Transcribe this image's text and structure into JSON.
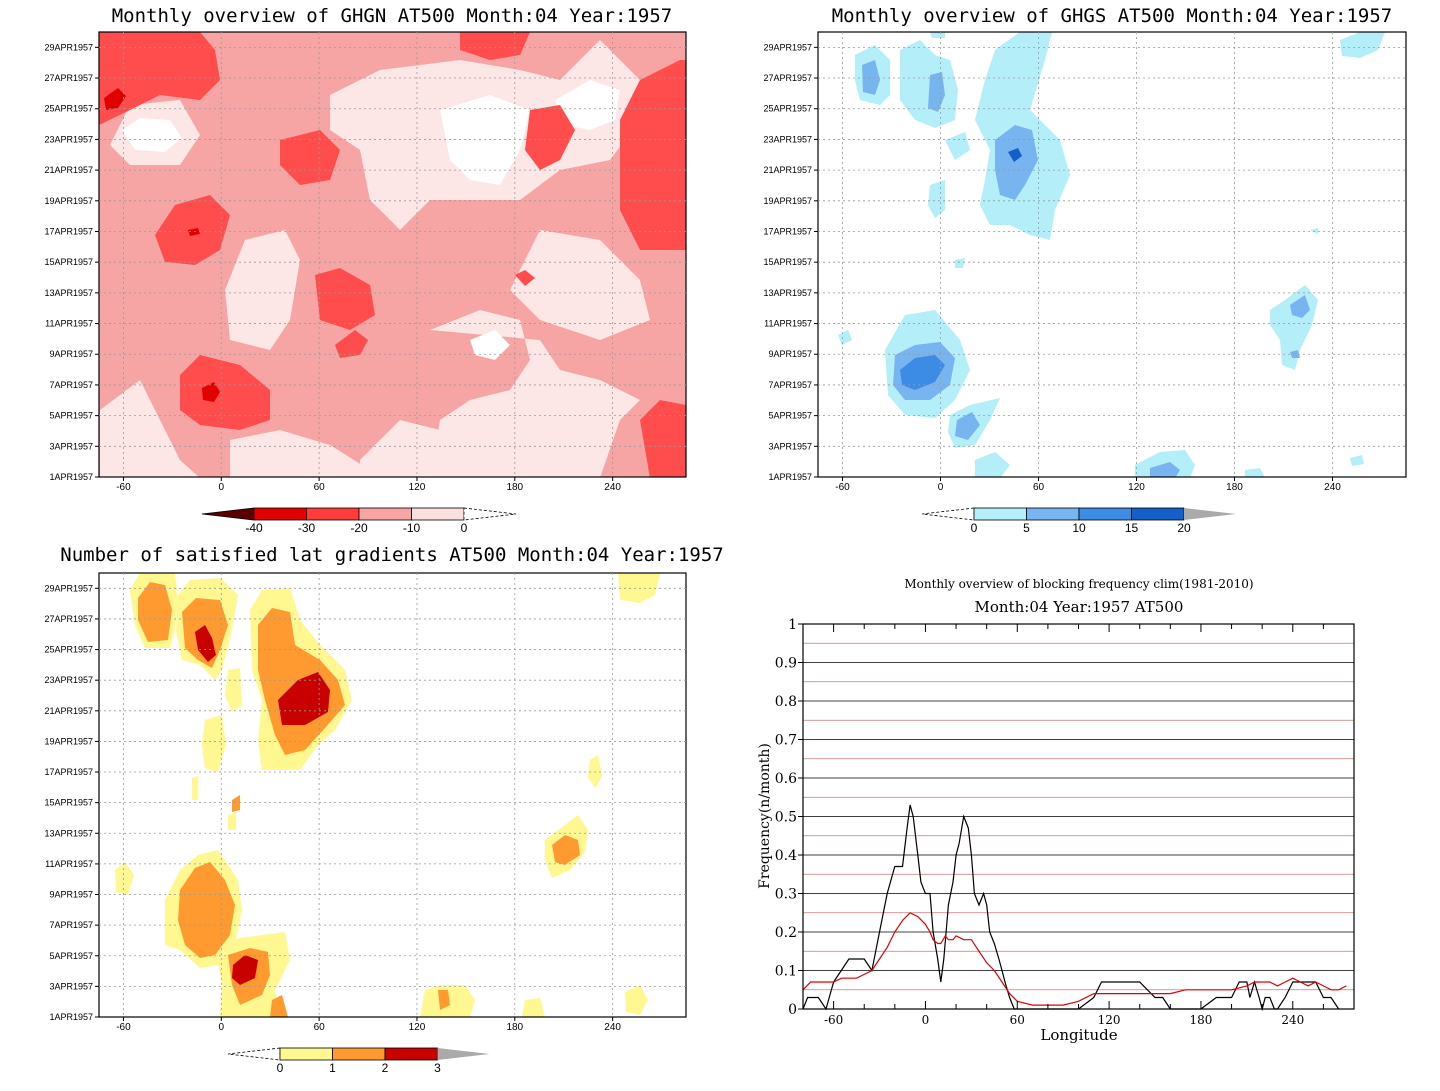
{
  "panels": [
    {
      "id": "ghgn",
      "title": "Monthly overview of GHGN AT500 Month:04 Year:1957",
      "y_ticks": [
        "1APR1957",
        "3APR1957",
        "5APR1957",
        "7APR1957",
        "9APR1957",
        "11APR1957",
        "13APR1957",
        "15APR1957",
        "17APR1957",
        "19APR1957",
        "21APR1957",
        "23APR1957",
        "25APR1957",
        "27APR1957",
        "29APR1957"
      ],
      "x_ticks": [
        "-60",
        "0",
        "60",
        "120",
        "180",
        "240"
      ],
      "x_values": [
        -60,
        0,
        60,
        120,
        180,
        240
      ],
      "colorbar": {
        "labels": [
          "-40",
          "-30",
          "-20",
          "-10",
          "0"
        ],
        "colors": [
          "#5a0000",
          "#e00000",
          "#ff3c3c",
          "#f6a4a4",
          "#fbe0e0",
          "#ffffff"
        ]
      }
    },
    {
      "id": "ghgs",
      "title": "Monthly overview of GHGS AT500 Month:04 Year:1957",
      "y_ticks": [
        "1APR1957",
        "3APR1957",
        "5APR1957",
        "7APR1957",
        "9APR1957",
        "11APR1957",
        "13APR1957",
        "15APR1957",
        "17APR1957",
        "19APR1957",
        "21APR1957",
        "23APR1957",
        "25APR1957",
        "27APR1957",
        "29APR1957"
      ],
      "x_ticks": [
        "-60",
        "0",
        "60",
        "120",
        "180",
        "240"
      ],
      "x_values": [
        -60,
        0,
        60,
        120,
        180,
        240
      ],
      "colorbar": {
        "labels": [
          "0",
          "5",
          "10",
          "15",
          "20"
        ],
        "colors": [
          "#ffffff",
          "#b4eef8",
          "#78b4f0",
          "#3c8ce6",
          "#1460c8",
          "#aaaaaa"
        ]
      }
    },
    {
      "id": "latgrad",
      "title": "Number of satisfied lat gradients AT500 Month:04 Year:1957",
      "y_ticks": [
        "1APR1957",
        "3APR1957",
        "5APR1957",
        "7APR1957",
        "9APR1957",
        "11APR1957",
        "13APR1957",
        "15APR1957",
        "17APR1957",
        "19APR1957",
        "21APR1957",
        "23APR1957",
        "25APR1957",
        "27APR1957",
        "29APR1957"
      ],
      "x_ticks": [
        "-60",
        "0",
        "60",
        "120",
        "180",
        "240"
      ],
      "x_values": [
        -60,
        0,
        60,
        120,
        180,
        240
      ],
      "colorbar": {
        "labels": [
          "0",
          "1",
          "2",
          "3"
        ],
        "colors": [
          "#ffffff",
          "#fff890",
          "#ff9a30",
          "#c80000",
          "#aaaaaa"
        ]
      }
    }
  ],
  "chart_data": {
    "type": "line",
    "title": "Monthly overview of blocking frequency clim(1981-2010)",
    "subtitle": "Month:04 Year:1957  AT500",
    "xlabel": "Longitude",
    "ylabel": "Frequency(n/month)",
    "xlim": [
      -80,
      280
    ],
    "ylim": [
      0,
      1
    ],
    "x_ticks": [
      -60,
      0,
      60,
      120,
      180,
      240
    ],
    "y_ticks": [
      0,
      0.1,
      0.2,
      0.3,
      0.4,
      0.5,
      0.6,
      0.7,
      0.8,
      0.9,
      1
    ],
    "y_tick_labels": [
      "0",
      "0.1",
      "0.2",
      "0.3",
      "0.4",
      "0.5",
      "0.6",
      "0.7",
      "0.8",
      "0.9",
      "1"
    ],
    "grid": true,
    "series": [
      {
        "color": "#000000",
        "x": [
          -80,
          -77,
          -70,
          -65,
          -60,
          -55,
          -50,
          -45,
          -40,
          -35,
          -30,
          -25,
          -20,
          -15,
          -12,
          -10,
          -8,
          -5,
          -3,
          0,
          3,
          5,
          8,
          10,
          12,
          15,
          18,
          20,
          22,
          25,
          28,
          30,
          32,
          35,
          38,
          40,
          42,
          45,
          48,
          50,
          52,
          55,
          58,
          60,
          65,
          70,
          80,
          90,
          100,
          110,
          115,
          120,
          130,
          140,
          150,
          155,
          160,
          170,
          180,
          190,
          200,
          205,
          210,
          212,
          215,
          218,
          220,
          222,
          225,
          228,
          230,
          235,
          240,
          245,
          250,
          255,
          260,
          265,
          270
        ],
        "y": [
          0,
          0.03,
          0.03,
          0,
          0.07,
          0.1,
          0.13,
          0.13,
          0.13,
          0.1,
          0.2,
          0.3,
          0.37,
          0.37,
          0.47,
          0.53,
          0.5,
          0.4,
          0.33,
          0.3,
          0.3,
          0.2,
          0.13,
          0.07,
          0.13,
          0.27,
          0.33,
          0.4,
          0.43,
          0.5,
          0.47,
          0.4,
          0.3,
          0.27,
          0.3,
          0.27,
          0.2,
          0.17,
          0.13,
          0.1,
          0.07,
          0.03,
          0,
          0,
          0,
          0,
          0,
          0,
          0,
          0.03,
          0.07,
          0.07,
          0.07,
          0.07,
          0.03,
          0.03,
          0,
          0,
          0,
          0.03,
          0.03,
          0.07,
          0.07,
          0.03,
          0.07,
          0.03,
          0,
          0.03,
          0.03,
          0,
          0,
          0.03,
          0.07,
          0.07,
          0.07,
          0.07,
          0.03,
          0.03,
          0
        ]
      },
      {
        "color": "#e00000",
        "x": [
          -80,
          -75,
          -70,
          -65,
          -60,
          -55,
          -50,
          -45,
          -40,
          -35,
          -30,
          -25,
          -20,
          -15,
          -10,
          -5,
          0,
          3,
          5,
          8,
          10,
          13,
          15,
          18,
          20,
          25,
          30,
          35,
          40,
          45,
          50,
          55,
          60,
          70,
          80,
          90,
          100,
          110,
          120,
          130,
          140,
          150,
          160,
          170,
          180,
          190,
          200,
          210,
          215,
          220,
          225,
          230,
          235,
          240,
          245,
          250,
          255,
          260,
          265,
          270,
          275
        ],
        "y": [
          0.05,
          0.07,
          0.07,
          0.07,
          0.07,
          0.08,
          0.08,
          0.08,
          0.09,
          0.1,
          0.13,
          0.16,
          0.2,
          0.23,
          0.25,
          0.24,
          0.22,
          0.2,
          0.18,
          0.17,
          0.17,
          0.19,
          0.18,
          0.18,
          0.19,
          0.18,
          0.18,
          0.15,
          0.12,
          0.1,
          0.07,
          0.04,
          0.02,
          0.01,
          0.01,
          0.01,
          0.02,
          0.04,
          0.04,
          0.04,
          0.04,
          0.04,
          0.04,
          0.05,
          0.05,
          0.05,
          0.05,
          0.06,
          0.07,
          0.07,
          0.07,
          0.06,
          0.07,
          0.08,
          0.07,
          0.06,
          0.07,
          0.06,
          0.05,
          0.05,
          0.06
        ]
      }
    ]
  }
}
